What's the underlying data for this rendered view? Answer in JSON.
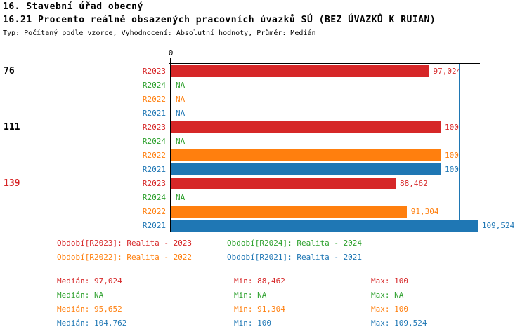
{
  "header": {
    "title": "16. Stavební úřad obecný",
    "subtitle": "16.21 Procento reálně obsazených pracovních úvazků SÚ (BEZ ÚVAZKŮ K RUIAN)",
    "meta": "Typ: Počítaný podle vzorce, Vyhodnocení: Absolutní hodnoty, Průměr: Medián"
  },
  "chart_data": {
    "type": "bar",
    "orientation": "horizontal",
    "x_axis": {
      "origin_label": "0"
    },
    "series_order": [
      "R2023",
      "R2024",
      "R2022",
      "R2021"
    ],
    "series_colors": {
      "R2023": "#d62728",
      "R2024": "#2ca02c",
      "R2022": "#ff7f0e",
      "R2021": "#1f77b4"
    },
    "highlight_color": "#d62728",
    "na_text": "NA",
    "groups": [
      {
        "label": "76",
        "highlight": false,
        "bars": [
          {
            "series": "R2023",
            "value": 97.024,
            "label": "97,024"
          },
          {
            "series": "R2024",
            "value": null,
            "label": "NA"
          },
          {
            "series": "R2022",
            "value": null,
            "label": "NA"
          },
          {
            "series": "R2021",
            "value": null,
            "label": "NA"
          }
        ]
      },
      {
        "label": "111",
        "highlight": false,
        "bars": [
          {
            "series": "R2023",
            "value": 100,
            "label": "100"
          },
          {
            "series": "R2024",
            "value": null,
            "label": "NA"
          },
          {
            "series": "R2022",
            "value": 100,
            "label": "100"
          },
          {
            "series": "R2021",
            "value": 100,
            "label": "100"
          }
        ]
      },
      {
        "label": "139",
        "highlight": true,
        "bars": [
          {
            "series": "R2023",
            "value": 88.462,
            "label": "88,462"
          },
          {
            "series": "R2024",
            "value": null,
            "label": "NA"
          },
          {
            "series": "R2022",
            "value": 91.304,
            "label": "91,304"
          },
          {
            "series": "R2021",
            "value": 109.524,
            "label": "109,524"
          }
        ]
      }
    ],
    "median_lines": [
      {
        "series": "R2022",
        "value": 95.652
      },
      {
        "series": "R2023",
        "value": 97.024
      },
      {
        "series": "R2021",
        "value": 104.762
      }
    ]
  },
  "legend": {
    "items": [
      {
        "series": "R2023",
        "label": "Období[R2023]: Realita - 2023"
      },
      {
        "series": "R2024",
        "label": "Období[R2024]: Realita - 2024"
      },
      {
        "series": "R2022",
        "label": "Období[R2022]: Realita - 2022"
      },
      {
        "series": "R2021",
        "label": "Období[R2021]: Realita - 2021"
      }
    ]
  },
  "stats": {
    "rows": [
      {
        "series": "R2023",
        "median": "Medián: 97,024",
        "min": "Min: 88,462",
        "max": "Max: 100"
      },
      {
        "series": "R2024",
        "median": "Medián: NA",
        "min": "Min: NA",
        "max": "Max: NA"
      },
      {
        "series": "R2022",
        "median": "Medián: 95,652",
        "min": "Min: 91,304",
        "max": "Max: 100"
      },
      {
        "series": "R2021",
        "median": "Medián: 104,762",
        "min": "Min: 100",
        "max": "Max: 109,524"
      }
    ]
  }
}
